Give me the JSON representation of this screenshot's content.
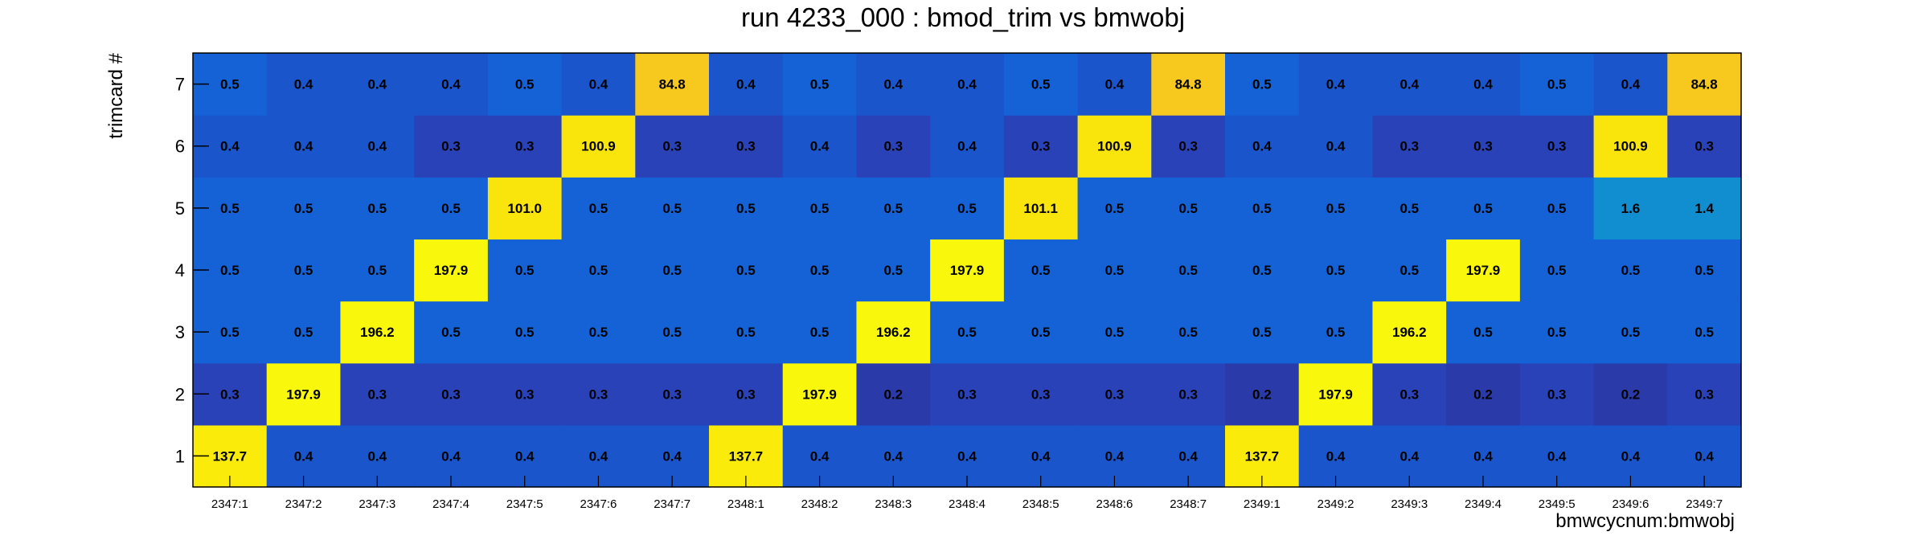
{
  "chart_data": {
    "type": "heatmap",
    "title": "run 4233_000 : bmod_trim vs bmwobj",
    "xlabel": "bmwcycnum:bmwobj",
    "ylabel": "trimcard #",
    "x_categories": [
      "2347:1",
      "2347:2",
      "2347:3",
      "2347:4",
      "2347:5",
      "2347:6",
      "2347:7",
      "2348:1",
      "2348:2",
      "2348:3",
      "2348:4",
      "2348:5",
      "2348:6",
      "2348:7",
      "2349:1",
      "2349:2",
      "2349:3",
      "2349:4",
      "2349:5",
      "2349:6",
      "2349:7"
    ],
    "y_categories": [
      "1",
      "2",
      "3",
      "4",
      "5",
      "6",
      "7"
    ],
    "values": [
      [
        "137.7",
        "0.4",
        "0.4",
        "0.4",
        "0.4",
        "0.4",
        "0.4",
        "137.7",
        "0.4",
        "0.4",
        "0.4",
        "0.4",
        "0.4",
        "0.4",
        "137.7",
        "0.4",
        "0.4",
        "0.4",
        "0.4",
        "0.4",
        "0.4"
      ],
      [
        "0.3",
        "197.9",
        "0.3",
        "0.3",
        "0.3",
        "0.3",
        "0.3",
        "0.3",
        "197.9",
        "0.2",
        "0.3",
        "0.3",
        "0.3",
        "0.3",
        "0.2",
        "197.9",
        "0.3",
        "0.2",
        "0.3",
        "0.2",
        "0.3"
      ],
      [
        "0.5",
        "0.5",
        "196.2",
        "0.5",
        "0.5",
        "0.5",
        "0.5",
        "0.5",
        "0.5",
        "196.2",
        "0.5",
        "0.5",
        "0.5",
        "0.5",
        "0.5",
        "0.5",
        "196.2",
        "0.5",
        "0.5",
        "0.5",
        "0.5"
      ],
      [
        "0.5",
        "0.5",
        "0.5",
        "197.9",
        "0.5",
        "0.5",
        "0.5",
        "0.5",
        "0.5",
        "0.5",
        "197.9",
        "0.5",
        "0.5",
        "0.5",
        "0.5",
        "0.5",
        "0.5",
        "197.9",
        "0.5",
        "0.5",
        "0.5"
      ],
      [
        "0.5",
        "0.5",
        "0.5",
        "0.5",
        "101.0",
        "0.5",
        "0.5",
        "0.5",
        "0.5",
        "0.5",
        "0.5",
        "101.1",
        "0.5",
        "0.5",
        "0.5",
        "0.5",
        "0.5",
        "0.5",
        "0.5",
        "1.6",
        "1.4"
      ],
      [
        "0.4",
        "0.4",
        "0.4",
        "0.3",
        "0.3",
        "100.9",
        "0.3",
        "0.3",
        "0.4",
        "0.3",
        "0.4",
        "0.3",
        "100.9",
        "0.3",
        "0.4",
        "0.4",
        "0.3",
        "0.3",
        "0.3",
        "100.9",
        "0.3"
      ],
      [
        "0.5",
        "0.4",
        "0.4",
        "0.4",
        "0.5",
        "0.4",
        "84.8",
        "0.4",
        "0.5",
        "0.4",
        "0.4",
        "0.5",
        "0.4",
        "84.8",
        "0.5",
        "0.4",
        "0.4",
        "0.4",
        "0.5",
        "0.4",
        "84.8"
      ]
    ],
    "colors": {
      "0.2": "#2a3aa8",
      "0.3": "#2a42b8",
      "0.4": "#1a55cc",
      "0.5": "#1462d6",
      "1.4": "#118ecf",
      "1.6": "#118ecf",
      "84.8": "#f7c91f",
      "100.9": "#f9e40c",
      "101.0": "#f9e40c",
      "101.1": "#f9e40c",
      "137.7": "#fbeb0a",
      "196.2": "#f9f70b",
      "197.9": "#f9f70b"
    }
  }
}
